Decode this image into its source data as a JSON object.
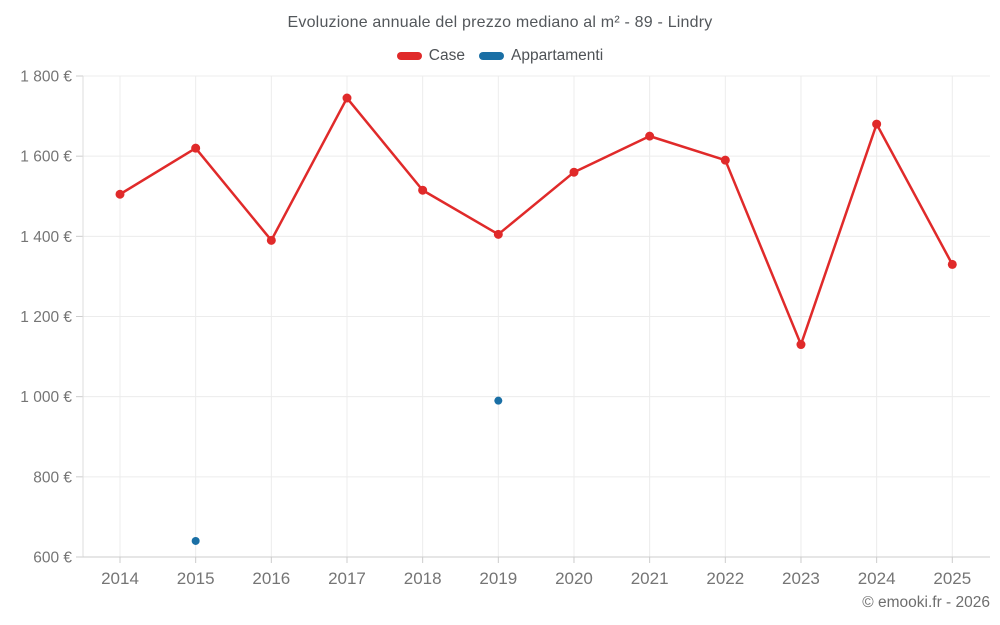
{
  "chart_data": {
    "type": "line",
    "title": "Evoluzione annuale del prezzo mediano al m² - 89 - Lindry",
    "categories": [
      "2014",
      "2015",
      "2016",
      "2017",
      "2018",
      "2019",
      "2020",
      "2021",
      "2022",
      "2023",
      "2024",
      "2025"
    ],
    "series": [
      {
        "name": "Case",
        "type": "line",
        "color": "#e02a2a",
        "values": [
          1505,
          1620,
          1390,
          1745,
          1515,
          1405,
          1560,
          1650,
          1590,
          1130,
          1680,
          1330
        ]
      },
      {
        "name": "Appartamenti",
        "type": "scatter",
        "color": "#1a6fa5",
        "values": [
          null,
          640,
          null,
          null,
          null,
          990,
          null,
          null,
          null,
          null,
          null,
          null
        ]
      }
    ],
    "xlabel": "",
    "ylabel": "",
    "ylim": [
      600,
      1800
    ],
    "y_tick_step": 200,
    "y_tick_labels": [
      "600 €",
      "800 €",
      "1 000 €",
      "1 200 €",
      "1 400 €",
      "1 600 €",
      "1 800 €"
    ],
    "grid": true,
    "legend_position": "top",
    "watermark": "© emooki.fr - 2026",
    "colors": {
      "grid": "#ececec",
      "axis": "#cccccc",
      "tick_text": "#757575",
      "title_text": "#53575b",
      "watermark_text": "#6e6e6e"
    }
  }
}
